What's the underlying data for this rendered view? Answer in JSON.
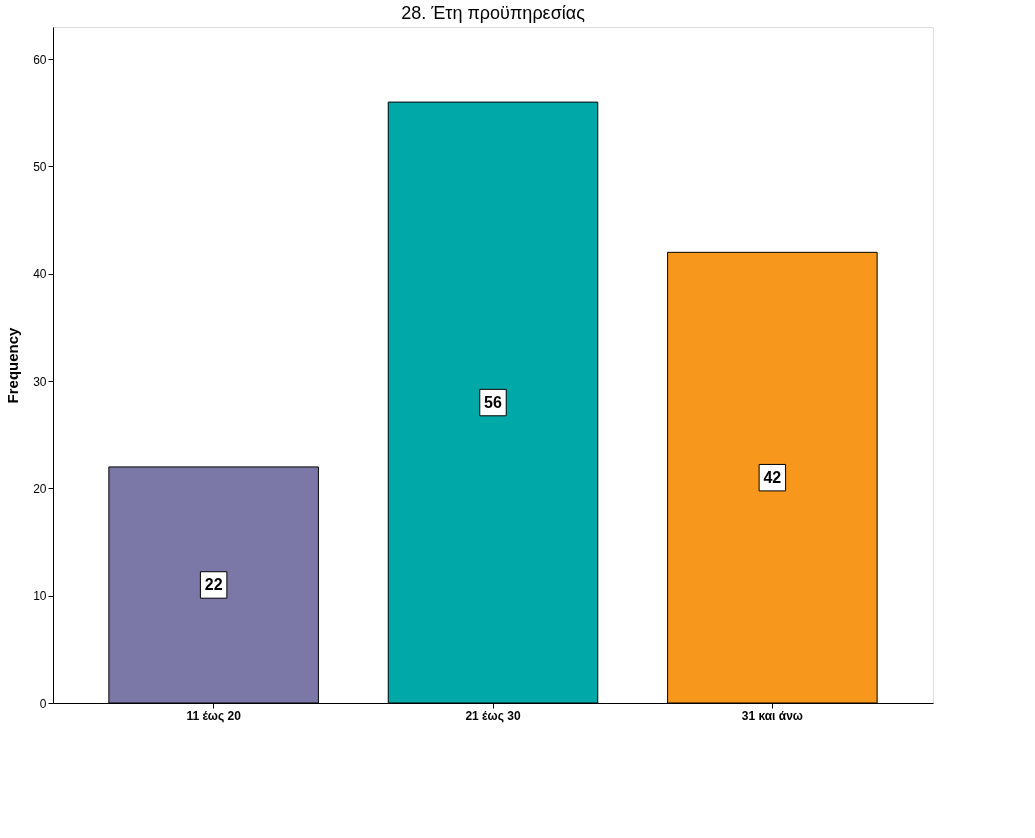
{
  "chart_data": {
    "type": "bar",
    "title": "28. Έτη προϋπηρεσίας",
    "ylabel": "Frequency",
    "categories": [
      "11 έως 20",
      "21 έως 30",
      "31 και άνω"
    ],
    "values": [
      22,
      56,
      42
    ],
    "colors": [
      "#7b78a8",
      "#00a8a8",
      "#f7981d"
    ],
    "ylim": [
      0,
      63
    ],
    "yticks": [
      0,
      10,
      20,
      30,
      40,
      50,
      60
    ],
    "data_labels": true,
    "grid": false,
    "legend": false
  }
}
